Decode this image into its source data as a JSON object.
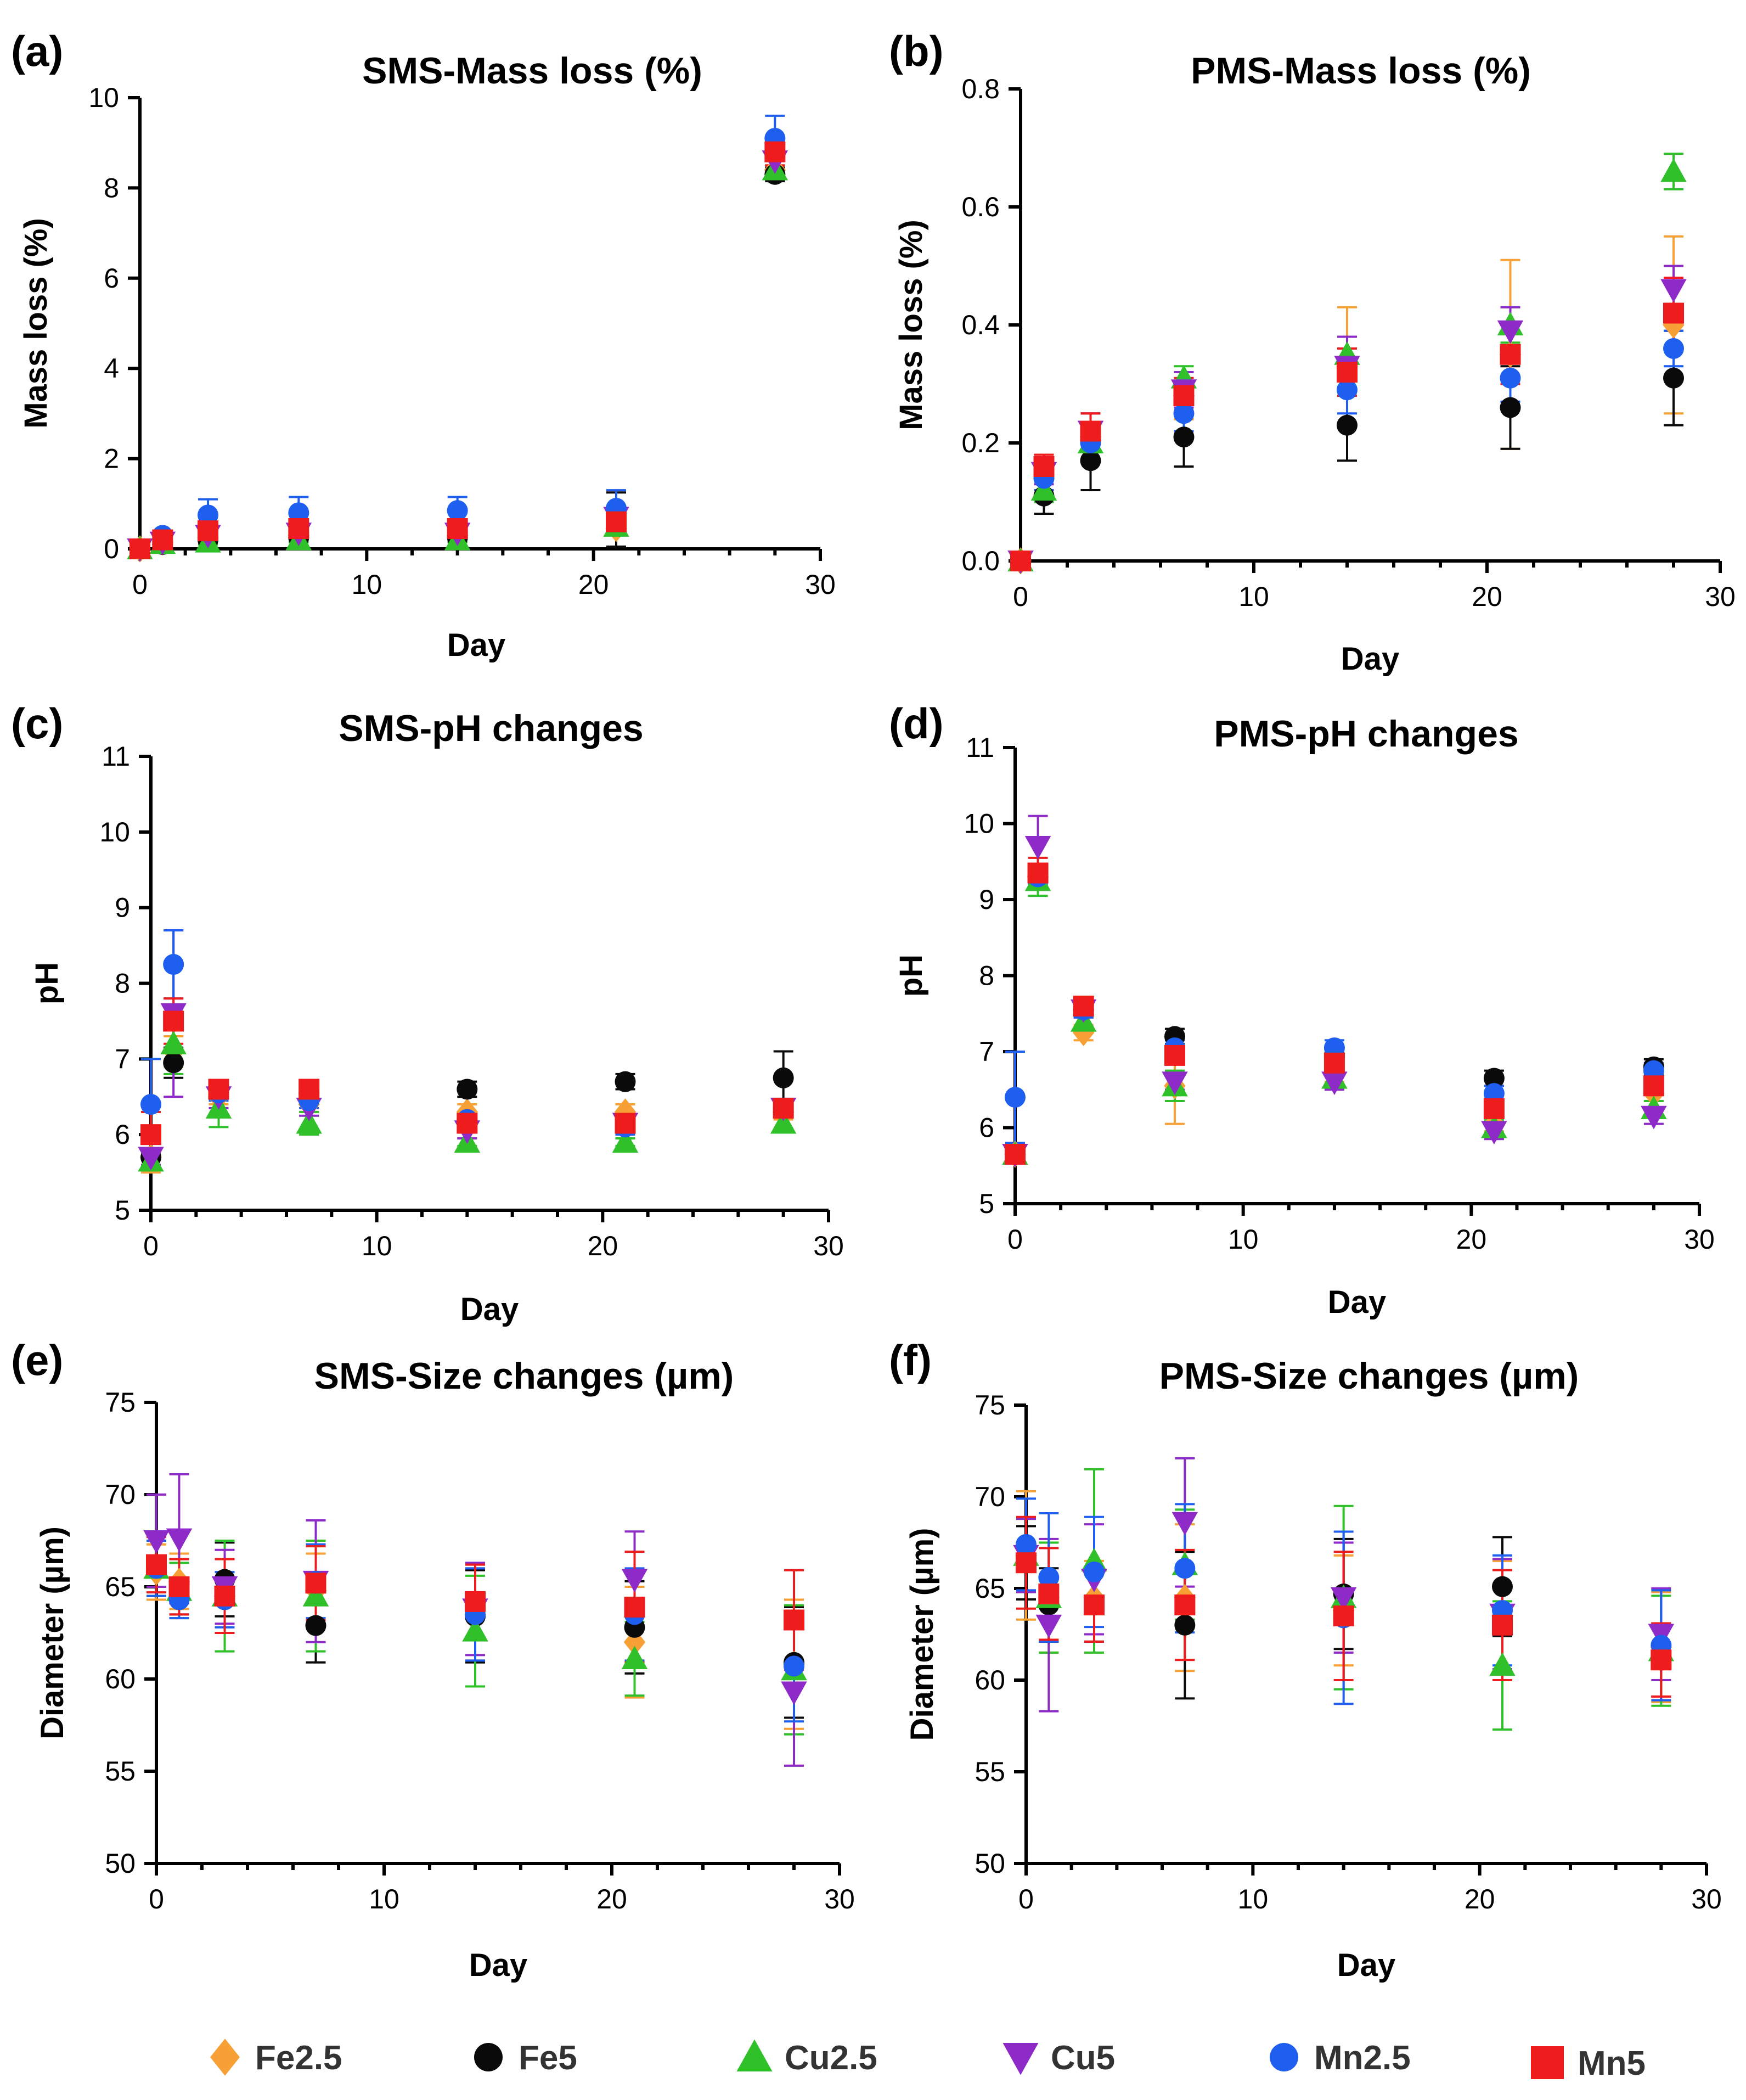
{
  "series": [
    {
      "name": "Fe2.5",
      "color": "#F7A035",
      "marker": "diamond"
    },
    {
      "name": "Fe5",
      "color": "#0A0A0A",
      "marker": "circle"
    },
    {
      "name": "Cu2.5",
      "color": "#2FC02A",
      "marker": "triangle-up"
    },
    {
      "name": "Cu5",
      "color": "#8E2BC8",
      "marker": "triangle-down"
    },
    {
      "name": "Mn2.5",
      "color": "#1F5FEF",
      "marker": "circle"
    },
    {
      "name": "Mn5",
      "color": "#EE1C1C",
      "marker": "square"
    }
  ],
  "legend_labels": [
    "Fe2.5",
    "Fe5",
    "Cu2.5",
    "Cu5",
    "Mn2.5",
    "Mn5"
  ],
  "chart_data": [
    {
      "panel": "(a)",
      "type": "scatter",
      "title": "SMS-Mass loss (%)",
      "xlabel": "Day",
      "ylabel": "Mass loss (%)",
      "xlim": [
        0,
        30
      ],
      "ylim": [
        0,
        10
      ],
      "xticks": [
        0,
        10,
        20,
        30
      ],
      "yticks": [
        0,
        2,
        4,
        6,
        8,
        10
      ],
      "x": [
        0,
        1,
        3,
        7,
        14,
        21,
        28
      ],
      "series": [
        {
          "name": "Fe2.5",
          "values": [
            0,
            0.15,
            0.25,
            0.3,
            0.3,
            0.45,
            8.4
          ],
          "errors": [
            0,
            0.05,
            0.1,
            0.1,
            0.1,
            0.1,
            0.2
          ]
        },
        {
          "name": "Fe5",
          "values": [
            0,
            0.1,
            0.2,
            0.25,
            0.25,
            0.65,
            8.3
          ],
          "errors": [
            0,
            0.05,
            0.1,
            0.1,
            0.1,
            0.6,
            0.15
          ]
        },
        {
          "name": "Cu2.5",
          "values": [
            0,
            0.12,
            0.15,
            0.2,
            0.2,
            0.5,
            8.4
          ],
          "errors": [
            0,
            0.05,
            0.05,
            0.05,
            0.05,
            0.1,
            0.2
          ]
        },
        {
          "name": "Cu5",
          "values": [
            0,
            0.15,
            0.3,
            0.35,
            0.35,
            0.7,
            8.6
          ],
          "errors": [
            0,
            0.05,
            0.1,
            0.1,
            0.1,
            0.15,
            0.2
          ]
        },
        {
          "name": "Mn2.5",
          "values": [
            0,
            0.3,
            0.75,
            0.8,
            0.85,
            0.9,
            9.1
          ],
          "errors": [
            0,
            0.1,
            0.35,
            0.35,
            0.3,
            0.4,
            0.5
          ]
        },
        {
          "name": "Mn5",
          "values": [
            0,
            0.2,
            0.4,
            0.45,
            0.45,
            0.6,
            8.8
          ],
          "errors": [
            0,
            0.05,
            0.15,
            0.15,
            0.15,
            0.2,
            0.3
          ]
        }
      ]
    },
    {
      "panel": "(b)",
      "type": "scatter",
      "title": "PMS-Mass loss (%)",
      "xlabel": "Day",
      "ylabel": "Mass loss (%)",
      "xlim": [
        0,
        30
      ],
      "ylim": [
        0,
        0.8
      ],
      "xticks": [
        0,
        10,
        20,
        30
      ],
      "yticks": [
        0.0,
        0.2,
        0.4,
        0.6,
        0.8
      ],
      "x": [
        0,
        1,
        3,
        7,
        14,
        21,
        28
      ],
      "series": [
        {
          "name": "Fe2.5",
          "values": [
            0,
            0.14,
            0.21,
            0.28,
            0.33,
            0.35,
            0.4
          ],
          "errors": [
            0,
            0.03,
            0.04,
            0.04,
            0.1,
            0.16,
            0.15
          ]
        },
        {
          "name": "Fe5",
          "values": [
            0,
            0.11,
            0.17,
            0.21,
            0.23,
            0.26,
            0.31
          ],
          "errors": [
            0,
            0.03,
            0.05,
            0.05,
            0.06,
            0.07,
            0.08
          ]
        },
        {
          "name": "Cu2.5",
          "values": [
            0,
            0.12,
            0.2,
            0.31,
            0.35,
            0.4,
            0.66
          ],
          "errors": [
            0,
            0.02,
            0.03,
            0.02,
            0.03,
            0.03,
            0.03
          ]
        },
        {
          "name": "Cu5",
          "values": [
            0,
            0.15,
            0.22,
            0.29,
            0.33,
            0.39,
            0.46
          ],
          "errors": [
            0,
            0.02,
            0.03,
            0.03,
            0.05,
            0.04,
            0.04
          ]
        },
        {
          "name": "Mn2.5",
          "values": [
            0,
            0.14,
            0.2,
            0.25,
            0.29,
            0.31,
            0.36
          ],
          "errors": [
            0,
            0.02,
            0.03,
            0.03,
            0.04,
            0.04,
            0.03
          ]
        },
        {
          "name": "Mn5",
          "values": [
            0,
            0.16,
            0.22,
            0.28,
            0.32,
            0.35,
            0.42
          ],
          "errors": [
            0,
            0.02,
            0.03,
            0.03,
            0.04,
            0.05,
            0.06
          ]
        }
      ]
    },
    {
      "panel": "(c)",
      "type": "scatter",
      "title": "SMS-pH changes",
      "xlabel": "Day",
      "ylabel": "pH",
      "xlim": [
        0,
        30
      ],
      "ylim": [
        5,
        11
      ],
      "xticks": [
        0,
        10,
        20,
        30
      ],
      "yticks": [
        5,
        6,
        7,
        8,
        9,
        10,
        11
      ],
      "x": [
        0,
        1,
        3,
        7,
        14,
        21,
        28
      ],
      "series": [
        {
          "name": "Fe2.5",
          "values": [
            5.7,
            7.1,
            6.5,
            6.4,
            6.3,
            6.3,
            6.3
          ],
          "errors": [
            0.2,
            0.2,
            0.1,
            0.1,
            0.1,
            0.1,
            0.1
          ]
        },
        {
          "name": "Fe5",
          "values": [
            5.7,
            6.95,
            6.55,
            6.55,
            6.6,
            6.7,
            6.75
          ],
          "errors": [
            0.1,
            0.2,
            0.1,
            0.1,
            0.1,
            0.1,
            0.35
          ]
        },
        {
          "name": "Cu2.5",
          "values": [
            5.65,
            7.2,
            6.35,
            6.15,
            5.9,
            5.9,
            6.15
          ],
          "errors": [
            0.1,
            0.4,
            0.25,
            0.15,
            0.05,
            0.05,
            0.1
          ]
        },
        {
          "name": "Cu5",
          "values": [
            5.7,
            7.6,
            6.5,
            6.35,
            6.05,
            6.15,
            6.35
          ],
          "errors": [
            0.1,
            1.1,
            0.15,
            0.1,
            0.1,
            0.1,
            0.1
          ]
        },
        {
          "name": "Mn2.5",
          "values": [
            6.4,
            8.25,
            6.55,
            6.45,
            6.2,
            6.1,
            6.35
          ],
          "errors": [
            0.6,
            0.45,
            0.1,
            0.1,
            0.1,
            0.1,
            0.1
          ]
        },
        {
          "name": "Mn5",
          "values": [
            6.0,
            7.5,
            6.6,
            6.6,
            6.15,
            6.15,
            6.35
          ],
          "errors": [
            0.3,
            0.3,
            0.1,
            0.1,
            0.1,
            0.1,
            0.1
          ]
        }
      ]
    },
    {
      "panel": "(d)",
      "type": "scatter",
      "title": "PMS-pH changes",
      "xlabel": "Day",
      "ylabel": "pH",
      "xlim": [
        0,
        30
      ],
      "ylim": [
        5,
        11
      ],
      "xticks": [
        0,
        10,
        20,
        30
      ],
      "yticks": [
        5,
        6,
        7,
        8,
        9,
        10,
        11
      ],
      "x": [
        0,
        1,
        3,
        7,
        14,
        21,
        28
      ],
      "series": [
        {
          "name": "Fe2.5",
          "values": [
            5.65,
            9.3,
            7.25,
            6.55,
            6.7,
            6.05,
            6.45
          ],
          "errors": [
            0.05,
            0.1,
            0.1,
            0.5,
            0.1,
            0.1,
            0.1
          ]
        },
        {
          "name": "Fe5",
          "values": [
            5.65,
            9.3,
            7.55,
            7.2,
            6.95,
            6.65,
            6.8
          ],
          "errors": [
            0.05,
            0.1,
            0.1,
            0.1,
            0.1,
            0.1,
            0.1
          ]
        },
        {
          "name": "Cu2.5",
          "values": [
            5.65,
            9.25,
            7.4,
            6.55,
            6.65,
            6.0,
            6.25
          ],
          "errors": [
            0.05,
            0.2,
            0.1,
            0.2,
            0.1,
            0.1,
            0.1
          ]
        },
        {
          "name": "Cu5",
          "values": [
            5.65,
            9.7,
            7.55,
            6.6,
            6.6,
            5.95,
            6.15
          ],
          "errors": [
            0.05,
            0.4,
            0.1,
            0.1,
            0.1,
            0.1,
            0.1
          ]
        },
        {
          "name": "Mn2.5",
          "values": [
            6.4,
            9.3,
            7.55,
            7.05,
            7.05,
            6.45,
            6.75
          ],
          "errors": [
            0.6,
            0.1,
            0.1,
            0.1,
            0.1,
            0.1,
            0.1
          ]
        },
        {
          "name": "Mn5",
          "values": [
            5.65,
            9.35,
            7.6,
            6.95,
            6.85,
            6.25,
            6.55
          ],
          "errors": [
            0.05,
            0.2,
            0.1,
            0.1,
            0.1,
            0.1,
            0.1
          ]
        }
      ]
    },
    {
      "panel": "(e)",
      "type": "scatter",
      "title": "SMS-Size changes (µm)",
      "xlabel": "Day",
      "ylabel": "Diameter (µm)",
      "xlim": [
        0,
        30
      ],
      "ylim": [
        50,
        75
      ],
      "xticks": [
        0,
        10,
        20,
        30
      ],
      "yticks": [
        50,
        55,
        60,
        65,
        70,
        75
      ],
      "x": [
        0,
        1,
        3,
        7,
        14,
        21,
        28
      ],
      "series": [
        {
          "name": "Fe2.5",
          "values": [
            65.8,
            65.3,
            64.5,
            64.8,
            63.5,
            62.0,
            60.8
          ],
          "errors": [
            1.5,
            1.5,
            2,
            2,
            2.5,
            3,
            3.5
          ]
        },
        {
          "name": "Fe5",
          "values": [
            66.0,
            65.0,
            65.4,
            62.9,
            63.4,
            62.8,
            60.9
          ],
          "errors": [
            1.5,
            1.5,
            2,
            2,
            2.5,
            2.5,
            3
          ]
        },
        {
          "name": "Cu2.5",
          "values": [
            66.0,
            64.8,
            64.5,
            64.5,
            62.6,
            61.1,
            60.5
          ],
          "errors": [
            1.5,
            1.5,
            3,
            3,
            3,
            2,
            3.5
          ]
        },
        {
          "name": "Cu5",
          "values": [
            67.5,
            67.6,
            65.0,
            65.3,
            63.8,
            65.4,
            59.3
          ],
          "errors": [
            2.5,
            3.5,
            2,
            3.3,
            2.5,
            2.6,
            4
          ]
        },
        {
          "name": "Mn2.5",
          "values": [
            66.0,
            64.3,
            64.3,
            65.3,
            63.5,
            63.5,
            60.7
          ],
          "errors": [
            1.5,
            1,
            1.5,
            2,
            2.5,
            2.5,
            3
          ]
        },
        {
          "name": "Mn5",
          "values": [
            66.2,
            65.0,
            64.5,
            65.2,
            64.2,
            63.9,
            63.2
          ],
          "errors": [
            1.5,
            1.5,
            2,
            2,
            2,
            3,
            2.7
          ]
        }
      ]
    },
    {
      "panel": "(f)",
      "type": "scatter",
      "title": "PMS-Size changes (µm)",
      "xlabel": "Day",
      "ylabel": "Diameter (µm)",
      "xlim": [
        0,
        30
      ],
      "ylim": [
        50,
        75
      ],
      "xticks": [
        0,
        10,
        20,
        30
      ],
      "yticks": [
        50,
        55,
        60,
        65,
        70,
        75
      ],
      "x": [
        0,
        1,
        3,
        7,
        14,
        21,
        28
      ],
      "series": [
        {
          "name": "Fe2.5",
          "values": [
            66.8,
            64.5,
            64.5,
            64.5,
            63.8,
            63.5,
            61.8
          ],
          "errors": [
            3.5,
            3,
            2,
            4,
            3,
            3,
            3
          ]
        },
        {
          "name": "Fe5",
          "values": [
            66.4,
            64.1,
            64.1,
            63.0,
            64.7,
            65.1,
            61.1
          ],
          "errors": [
            2,
            2,
            2,
            4,
            3,
            2.7,
            2
          ]
        },
        {
          "name": "Cu2.5",
          "values": [
            66.8,
            64.5,
            66.5,
            66.3,
            64.5,
            60.8,
            61.6
          ],
          "errors": [
            2,
            3,
            5,
            3,
            5,
            3.5,
            3
          ]
        },
        {
          "name": "Cu5",
          "values": [
            66.8,
            63.0,
            65.5,
            68.6,
            64.5,
            63.6,
            62.5
          ],
          "errors": [
            2,
            4.7,
            3,
            3.5,
            3,
            3,
            2.5
          ]
        },
        {
          "name": "Mn2.5",
          "values": [
            67.4,
            65.6,
            65.9,
            66.1,
            63.4,
            63.8,
            61.9
          ],
          "errors": [
            2.5,
            3.5,
            3,
            3.5,
            4.7,
            3,
            3
          ]
        },
        {
          "name": "Mn5",
          "values": [
            66.4,
            64.7,
            64.1,
            64.1,
            63.5,
            63.0,
            61.1
          ],
          "errors": [
            2.5,
            2.5,
            2,
            3,
            3.5,
            3,
            2
          ]
        }
      ]
    }
  ]
}
